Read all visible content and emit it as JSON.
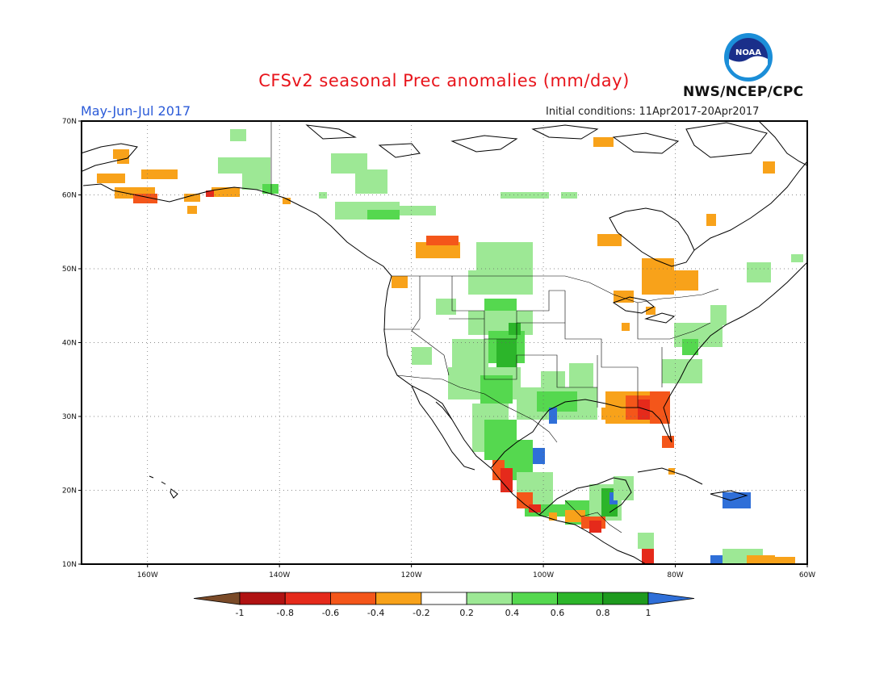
{
  "title": "CFSv2 seasonal Prec anomalies (mm/day)",
  "period": "May-Jun-Jul 2017",
  "initial_conditions": "Initial conditions: 11Apr2017-20Apr2017",
  "agency": "NWS/NCEP/CPC",
  "logo_text": "NOAA",
  "logo_icon": "noaa-logo-icon",
  "lat_labels": [
    "70N",
    "60N",
    "50N",
    "40N",
    "30N",
    "20N",
    "10N"
  ],
  "lon_labels": [
    "160W",
    "140W",
    "120W",
    "100W",
    "80W",
    "60W"
  ],
  "colorbar": {
    "labels": [
      "-1",
      "-0.8",
      "-0.6",
      "-0.4",
      "-0.2",
      "0.2",
      "0.4",
      "0.6",
      "0.8",
      "1"
    ],
    "colors": [
      "#7a4a28",
      "#b01212",
      "#e52a1b",
      "#f4561a",
      "#f8a21a",
      "#ffffff",
      "#9de895",
      "#55d84f",
      "#2cb52a",
      "#1e9a1e",
      "#2f6fd8"
    ]
  }
}
